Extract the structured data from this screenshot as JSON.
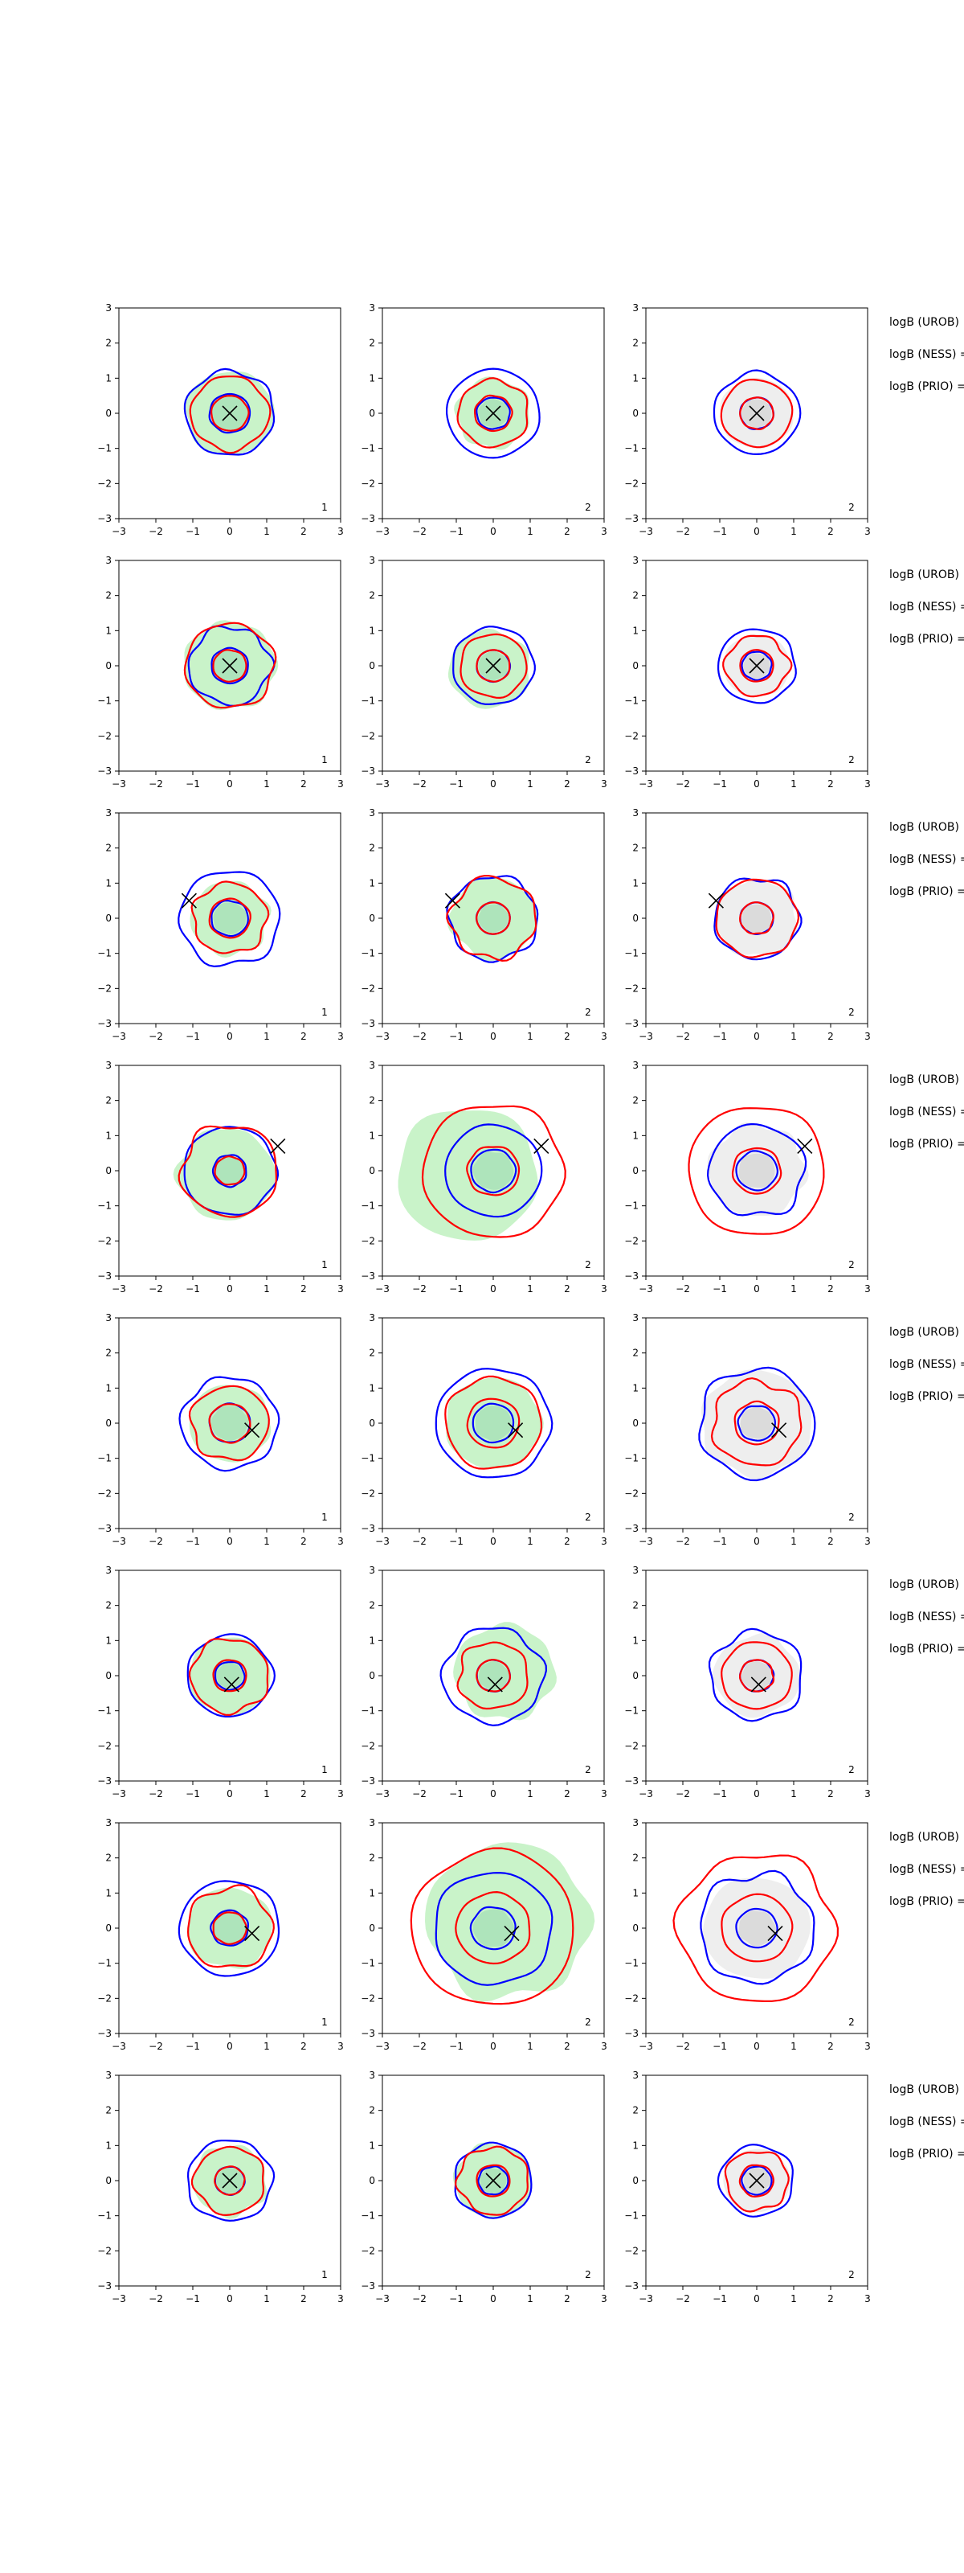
{
  "figure": {
    "title": ""
  },
  "chart_data": {
    "type": "contour-grid",
    "rows": 8,
    "cols": 3,
    "xlim": [
      -3,
      3
    ],
    "ylim": [
      -3,
      3
    ],
    "ticks": [
      "−3",
      "−2",
      "−1",
      "0",
      "1",
      "2",
      "3"
    ],
    "tick_values": [
      -3,
      -2,
      -1,
      0,
      1,
      2,
      3
    ],
    "colors": {
      "blue": "#0000ff",
      "red": "#ff0000",
      "green_fill": "#c9f3c9",
      "gray_fill": "#eeeeee",
      "marker": "#000000"
    },
    "row_side_labels": [
      "logB (UROB)",
      "logB (NESS) =",
      "logB (PRIO) ="
    ],
    "panels": [
      {
        "label": "1",
        "fill": "green",
        "marker": [
          0,
          0
        ],
        "blue": [
          0.55,
          1.2
        ],
        "red": [
          0.5,
          1.05
        ],
        "fillr": 1.2,
        "fillshift": [
          0,
          0
        ]
      },
      {
        "label": "2",
        "fill": "green",
        "marker": [
          0,
          0
        ],
        "blue": [
          0.45,
          1.25
        ],
        "red": [
          0.5,
          0.95
        ],
        "fillr": 1.0,
        "fillshift": [
          0,
          0
        ]
      },
      {
        "label": "2",
        "fill": "gray",
        "marker": [
          0,
          0
        ],
        "blue": [
          0.45,
          1.15
        ],
        "red": [
          0.45,
          0.95
        ],
        "fillr": 1.0,
        "fillshift": [
          0,
          0
        ]
      },
      {
        "label": "1",
        "fill": "green",
        "marker": [
          0,
          0
        ],
        "blue": [
          0.5,
          1.1
        ],
        "red": [
          0.45,
          1.2
        ],
        "fillr": 1.25,
        "fillshift": [
          0,
          0
        ]
      },
      {
        "label": "2",
        "fill": "green",
        "marker": [
          0,
          0
        ],
        "blue": [
          0.45,
          1.1
        ],
        "red": [
          0.45,
          0.9
        ],
        "fillr": 1.1,
        "fillshift": [
          -0.1,
          -0.1
        ]
      },
      {
        "label": "2",
        "fill": "gray",
        "marker": [
          0,
          0
        ],
        "blue": [
          0.4,
          1.05
        ],
        "red": [
          0.45,
          0.85
        ],
        "fillr": 0.9,
        "fillshift": [
          0,
          0
        ]
      },
      {
        "label": "1",
        "fill": "green",
        "marker": [
          -1.1,
          0.5
        ],
        "blue": [
          0.5,
          1.35
        ],
        "red": [
          0.55,
          1.0
        ],
        "fillr": 1.05,
        "fillshift": [
          0,
          0
        ]
      },
      {
        "label": "2",
        "fill": "green",
        "marker": [
          -1.1,
          0.5
        ],
        "blue": [
          0.45,
          1.2
        ],
        "red": [
          0.45,
          1.15
        ],
        "fillr": 1.15,
        "fillshift": [
          0,
          0
        ]
      },
      {
        "label": "2",
        "fill": "gray",
        "marker": [
          -1.1,
          0.5
        ],
        "blue": [
          0.45,
          1.15
        ],
        "red": [
          0.45,
          1.1
        ],
        "fillr": 1.1,
        "fillshift": [
          0,
          0
        ]
      },
      {
        "label": "1",
        "fill": "green",
        "marker": [
          1.3,
          0.7
        ],
        "blue": [
          0.45,
          1.25
        ],
        "red": [
          0.4,
          1.3
        ],
        "fillr": 1.3,
        "fillshift": [
          -0.1,
          -0.1
        ]
      },
      {
        "label": "2",
        "fill": "green",
        "marker": [
          1.3,
          0.7
        ],
        "blue": [
          0.6,
          1.3
        ],
        "red": [
          0.7,
          1.9
        ],
        "fillr": 1.9,
        "fillshift": [
          -0.7,
          -0.1
        ]
      },
      {
        "label": "2",
        "fill": "gray",
        "marker": [
          1.3,
          0.7
        ],
        "blue": [
          0.55,
          1.3
        ],
        "red": [
          0.65,
          1.85
        ],
        "fillr": 1.3,
        "fillshift": [
          0,
          0
        ]
      },
      {
        "label": "1",
        "fill": "green",
        "marker": [
          0.6,
          -0.2
        ],
        "blue": [
          0.55,
          1.3
        ],
        "red": [
          0.55,
          1.05
        ],
        "fillr": 1.1,
        "fillshift": [
          0,
          0
        ]
      },
      {
        "label": "2",
        "fill": "green",
        "marker": [
          0.6,
          -0.2
        ],
        "blue": [
          0.55,
          1.55
        ],
        "red": [
          0.7,
          1.3
        ],
        "fillr": 1.3,
        "fillshift": [
          0,
          0
        ]
      },
      {
        "label": "2",
        "fill": "gray",
        "marker": [
          0.6,
          -0.2
        ],
        "blue": [
          0.5,
          1.55
        ],
        "red": [
          0.6,
          1.2
        ],
        "fillr": 1.5,
        "fillshift": [
          0,
          0
        ]
      },
      {
        "label": "1",
        "fill": "green",
        "marker": [
          0.05,
          -0.25
        ],
        "blue": [
          0.4,
          1.15
        ],
        "red": [
          0.45,
          1.05
        ],
        "fillr": 1.1,
        "fillshift": [
          0,
          0
        ]
      },
      {
        "label": "2",
        "fill": "green",
        "marker": [
          0.05,
          -0.25
        ],
        "blue": [
          0.45,
          1.35
        ],
        "red": [
          0.45,
          0.95
        ],
        "fillr": 1.35,
        "fillshift": [
          0.3,
          0.1
        ]
      },
      {
        "label": "2",
        "fill": "gray",
        "marker": [
          0.05,
          -0.25
        ],
        "blue": [
          0.45,
          1.25
        ],
        "red": [
          0.45,
          0.95
        ],
        "fillr": 1.15,
        "fillshift": [
          0,
          0
        ]
      },
      {
        "label": "1",
        "fill": "green",
        "marker": [
          0.6,
          -0.15
        ],
        "blue": [
          0.5,
          1.35
        ],
        "red": [
          0.45,
          1.15
        ],
        "fillr": 1.15,
        "fillshift": [
          0,
          0
        ]
      },
      {
        "label": "2",
        "fill": "green",
        "marker": [
          0.5,
          -0.15
        ],
        "blue": [
          0.6,
          1.6
        ],
        "red": [
          1.0,
          2.2
        ],
        "fillr": 2.2,
        "fillshift": [
          0.4,
          0.2
        ]
      },
      {
        "label": "2",
        "fill": "gray",
        "marker": [
          0.5,
          -0.15
        ],
        "blue": [
          0.55,
          1.55
        ],
        "red": [
          0.95,
          2.1
        ],
        "fillr": 1.45,
        "fillshift": [
          0,
          0
        ]
      },
      {
        "label": "1",
        "fill": "green",
        "marker": [
          0,
          0
        ],
        "blue": [
          0.4,
          1.15
        ],
        "red": [
          0.4,
          0.95
        ],
        "fillr": 1.0,
        "fillshift": [
          0,
          0
        ]
      },
      {
        "label": "2",
        "fill": "green",
        "marker": [
          0,
          0
        ],
        "blue": [
          0.4,
          1.05
        ],
        "red": [
          0.45,
          0.95
        ],
        "fillr": 1.05,
        "fillshift": [
          0,
          0
        ]
      },
      {
        "label": "2",
        "fill": "gray",
        "marker": [
          0,
          0
        ],
        "blue": [
          0.4,
          1.0
        ],
        "red": [
          0.45,
          0.85
        ],
        "fillr": 0.9,
        "fillshift": [
          0,
          0
        ]
      }
    ]
  }
}
